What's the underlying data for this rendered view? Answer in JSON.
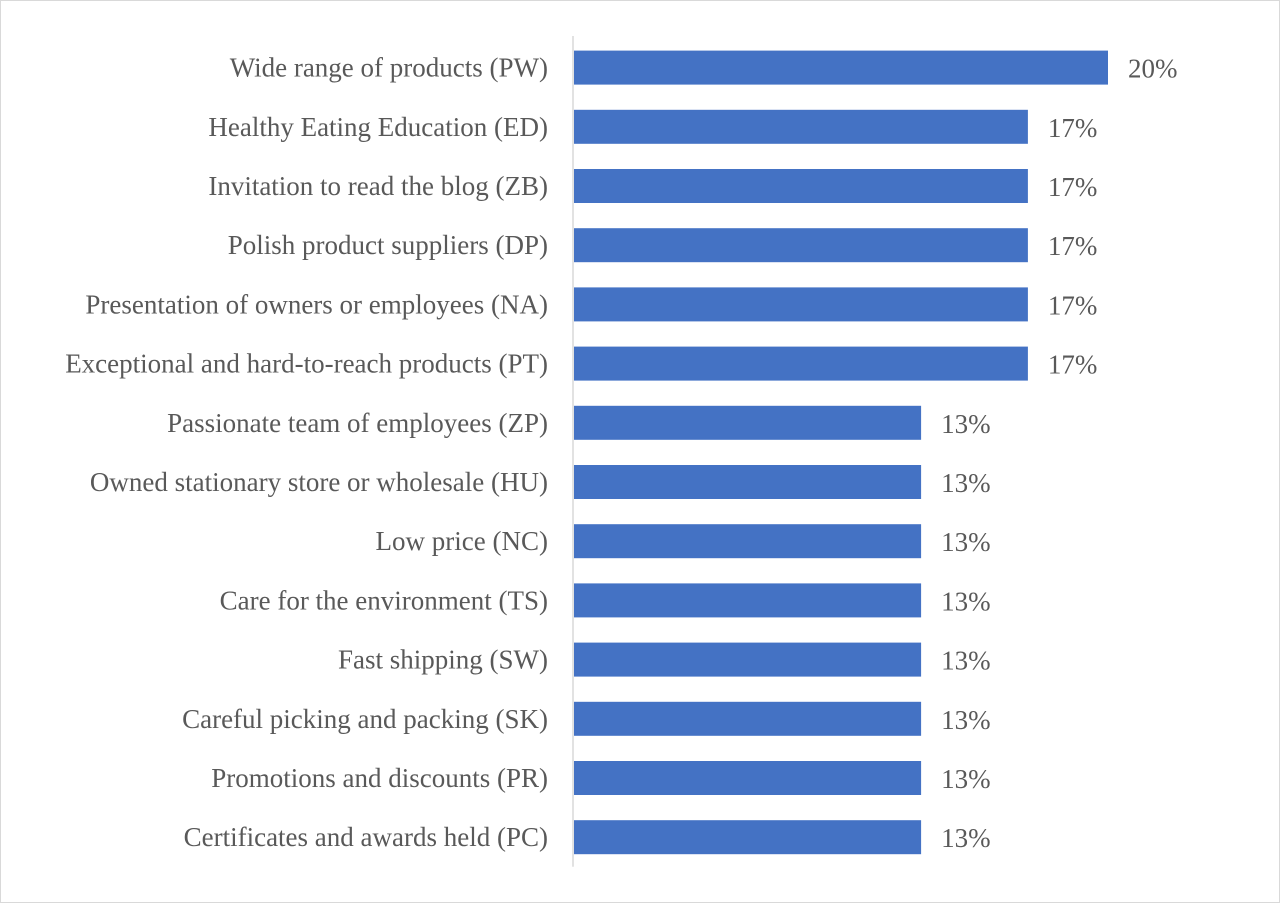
{
  "chart_data": {
    "type": "bar",
    "orientation": "horizontal",
    "title": "",
    "xlabel": "",
    "ylabel": "",
    "categories": [
      "Wide range of products (PW)",
      "Healthy Eating Education (ED)",
      "Invitation to read the blog (ZB)",
      "Polish product suppliers (DP)",
      "Presentation of owners or employees (NA)",
      "Exceptional and hard-to-reach products (PT)",
      "Passionate team of employees (ZP)",
      "Owned stationary store or wholesale (HU)",
      "Low price (NC)",
      "Care for the environment (TS)",
      "Fast shipping (SW)",
      "Careful picking and packing (SK)",
      "Promotions and discounts (PR)",
      "Certificates and awards held (PC)"
    ],
    "values": [
      20,
      17,
      17,
      17,
      17,
      17,
      13,
      13,
      13,
      13,
      13,
      13,
      13,
      13
    ],
    "value_labels": [
      "20%",
      "17%",
      "17%",
      "17%",
      "17%",
      "17%",
      "13%",
      "13%",
      "13%",
      "13%",
      "13%",
      "13%",
      "13%",
      "13%"
    ],
    "unit": "%",
    "xlim": [
      0,
      20
    ],
    "grid": false,
    "legend": "none",
    "bar_color": "#4472C4",
    "axis_color": "#d9d9d9",
    "label_color": "#595959"
  }
}
